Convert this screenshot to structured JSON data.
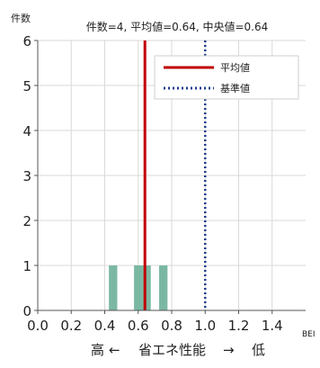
{
  "chart_data": {
    "type": "bar",
    "title": "件数=4, 平均値=0.64, 中央値=0.64",
    "ylabel": "件数",
    "xlabel_unit": "BEI",
    "xcaption": {
      "left": "高",
      "arrow_left": "←",
      "middle": "省エネ性能",
      "arrow_right": "→",
      "right": "低"
    },
    "xlim": [
      0.0,
      1.6
    ],
    "ylim": [
      0,
      6
    ],
    "xticks": [
      "0.0",
      "0.2",
      "0.4",
      "0.6",
      "0.8",
      "1.0",
      "1.2",
      "1.4"
    ],
    "xtick_values": [
      0.0,
      0.2,
      0.4,
      0.6,
      0.8,
      1.0,
      1.2,
      1.4
    ],
    "yticks": [
      "0",
      "1",
      "2",
      "3",
      "4",
      "5",
      "6"
    ],
    "ytick_values": [
      0,
      1,
      2,
      3,
      4,
      5,
      6
    ],
    "grid": true,
    "bars": [
      {
        "x": 0.45,
        "value": 1
      },
      {
        "x": 0.6,
        "value": 1
      },
      {
        "x": 0.65,
        "value": 1
      },
      {
        "x": 0.75,
        "value": 1
      }
    ],
    "bar_width": 0.05,
    "bar_color": "#7bb8a3",
    "mean": {
      "name": "平均値",
      "x": 0.64,
      "color": "#c00000"
    },
    "reference": {
      "name": "基準値",
      "x": 1.0,
      "color": "#1f3f8f"
    },
    "legend_position": "top-right"
  }
}
